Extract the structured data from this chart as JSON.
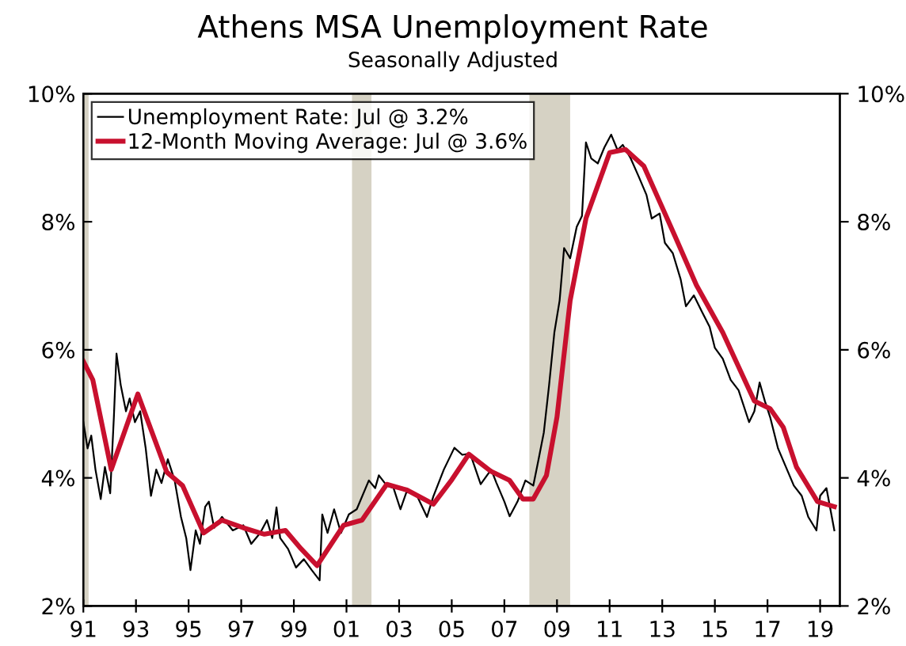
{
  "chart_data": {
    "type": "line",
    "title": "Athens MSA Unemployment Rate",
    "subtitle": "Seasonally Adjusted",
    "series": [
      {
        "name": "Unemployment Rate: Jul @ 3.2%",
        "color": "#000000",
        "x": [
          1991.0,
          1991.16,
          1991.3,
          1991.46,
          1991.66,
          1991.82,
          1992.02,
          1992.16,
          1992.26,
          1992.42,
          1992.62,
          1992.76,
          1992.96,
          1993.16,
          1993.37,
          1993.57,
          1993.77,
          1993.97,
          1994.21,
          1994.47,
          1994.71,
          1994.91,
          1995.07,
          1995.27,
          1995.43,
          1995.63,
          1995.77,
          1995.97,
          1996.27,
          1996.68,
          1997.08,
          1997.38,
          1997.72,
          1997.98,
          1998.18,
          1998.34,
          1998.48,
          1998.78,
          1999.08,
          1999.38,
          1999.68,
          1999.98,
          2000.08,
          2000.28,
          2000.53,
          2000.79,
          2001.09,
          2001.39,
          2001.85,
          2002.09,
          2002.23,
          2002.53,
          2002.79,
          2003.05,
          2003.29,
          2003.69,
          2004.06,
          2004.3,
          2004.7,
          2005.1,
          2005.4,
          2005.7,
          2006.1,
          2006.5,
          2006.7,
          2007.0,
          2007.2,
          2007.5,
          2007.8,
          2008.1,
          2008.3,
          2008.5,
          2008.7,
          2008.9,
          2009.1,
          2009.27,
          2009.5,
          2009.75,
          2009.95,
          2010.1,
          2010.3,
          2010.55,
          2010.8,
          2011.06,
          2011.3,
          2011.5,
          2011.8,
          2012.1,
          2012.4,
          2012.6,
          2012.9,
          2013.1,
          2013.4,
          2013.7,
          2013.9,
          2014.2,
          2014.5,
          2014.8,
          2015.0,
          2015.3,
          2015.6,
          2015.9,
          2016.3,
          2016.5,
          2016.7,
          2016.9,
          2017.1,
          2017.4,
          2017.7,
          2018.0,
          2018.3,
          2018.55,
          2018.86,
          2019.0,
          2019.24,
          2019.54
        ],
        "values": [
          4.87,
          4.46,
          4.66,
          4.13,
          3.67,
          4.17,
          3.76,
          4.95,
          5.94,
          5.45,
          5.04,
          5.24,
          4.87,
          5.04,
          4.46,
          3.72,
          4.13,
          3.92,
          4.29,
          3.96,
          3.39,
          3.06,
          2.56,
          3.18,
          2.97,
          3.55,
          3.63,
          3.22,
          3.39,
          3.18,
          3.26,
          2.97,
          3.14,
          3.34,
          3.06,
          3.54,
          3.06,
          2.89,
          2.6,
          2.73,
          2.56,
          2.4,
          3.43,
          3.14,
          3.51,
          3.14,
          3.43,
          3.51,
          3.96,
          3.84,
          4.04,
          3.88,
          3.84,
          3.51,
          3.79,
          3.71,
          3.39,
          3.71,
          4.13,
          4.47,
          4.36,
          4.38,
          3.9,
          4.13,
          3.92,
          3.63,
          3.4,
          3.63,
          3.96,
          3.88,
          4.29,
          4.71,
          5.45,
          6.27,
          6.77,
          7.59,
          7.43,
          7.92,
          8.09,
          9.24,
          8.99,
          8.91,
          9.16,
          9.36,
          9.12,
          9.2,
          8.99,
          8.71,
          8.42,
          8.05,
          8.13,
          7.67,
          7.51,
          7.1,
          6.68,
          6.85,
          6.6,
          6.36,
          6.03,
          5.86,
          5.53,
          5.37,
          4.87,
          5.04,
          5.49,
          5.2,
          4.95,
          4.46,
          4.17,
          3.88,
          3.72,
          3.39,
          3.18,
          3.72,
          3.84,
          3.18
        ]
      },
      {
        "name": "12-Month Moving Average: Jul @ 3.6%",
        "color": "#c8102e",
        "x": [
          1991.0,
          1991.36,
          1992.06,
          1993.07,
          1994.17,
          1994.77,
          1995.57,
          1996.27,
          1997.08,
          1997.88,
          1998.68,
          1999.28,
          1999.88,
          2000.89,
          2001.59,
          2002.53,
          2003.3,
          2004.3,
          2005.0,
          2005.65,
          2006.5,
          2007.2,
          2007.7,
          2008.1,
          2008.6,
          2009.0,
          2009.5,
          2010.1,
          2011.0,
          2011.6,
          2012.3,
          2013.5,
          2014.3,
          2015.3,
          2016.5,
          2017.1,
          2017.6,
          2018.1,
          2018.9,
          2019.54
        ],
        "values": [
          5.82,
          5.53,
          4.13,
          5.31,
          4.09,
          3.88,
          3.14,
          3.34,
          3.22,
          3.12,
          3.18,
          2.89,
          2.63,
          3.26,
          3.34,
          3.9,
          3.81,
          3.59,
          3.97,
          4.37,
          4.1,
          3.96,
          3.67,
          3.67,
          4.04,
          4.95,
          6.77,
          8.05,
          9.08,
          9.13,
          8.87,
          7.76,
          7.01,
          6.27,
          5.2,
          5.08,
          4.79,
          4.17,
          3.63,
          3.55
        ]
      }
    ],
    "bands": [
      {
        "axis": "x",
        "from": 1991.0,
        "to": 1991.2,
        "color": "#d6d2c4"
      },
      {
        "axis": "x",
        "from": 2001.21,
        "to": 2001.95,
        "color": "#d6d2c4"
      },
      {
        "axis": "x",
        "from": 2007.95,
        "to": 2009.5,
        "color": "#d6d2c4"
      }
    ],
    "xlim": [
      1991.0,
      2019.75
    ],
    "xticks": [
      {
        "value": 1991,
        "label": "91"
      },
      {
        "value": 1993,
        "label": "93"
      },
      {
        "value": 1995,
        "label": "95"
      },
      {
        "value": 1997,
        "label": "97"
      },
      {
        "value": 1999,
        "label": "99"
      },
      {
        "value": 2001,
        "label": "01"
      },
      {
        "value": 2003,
        "label": "03"
      },
      {
        "value": 2005,
        "label": "05"
      },
      {
        "value": 2007,
        "label": "07"
      },
      {
        "value": 2009,
        "label": "09"
      },
      {
        "value": 2011,
        "label": "11"
      },
      {
        "value": 2013,
        "label": "13"
      },
      {
        "value": 2015,
        "label": "15"
      },
      {
        "value": 2017,
        "label": "17"
      },
      {
        "value": 2019,
        "label": "19"
      }
    ],
    "ylim": [
      2,
      10
    ],
    "yticks": [
      {
        "value": 2,
        "label": "2%"
      },
      {
        "value": 4,
        "label": "4%"
      },
      {
        "value": 6,
        "label": "6%"
      },
      {
        "value": 8,
        "label": "8%"
      },
      {
        "value": 10,
        "label": "10%"
      }
    ],
    "y2lim": [
      2,
      10
    ],
    "y2ticks": [
      {
        "value": 2,
        "label": "2%"
      },
      {
        "value": 4,
        "label": "4%"
      },
      {
        "value": 6,
        "label": "6%"
      },
      {
        "value": 8,
        "label": "8%"
      },
      {
        "value": 10,
        "label": "10%"
      }
    ],
    "grid": false,
    "legend": "top left",
    "marker": "none",
    "line_style": "solid"
  }
}
